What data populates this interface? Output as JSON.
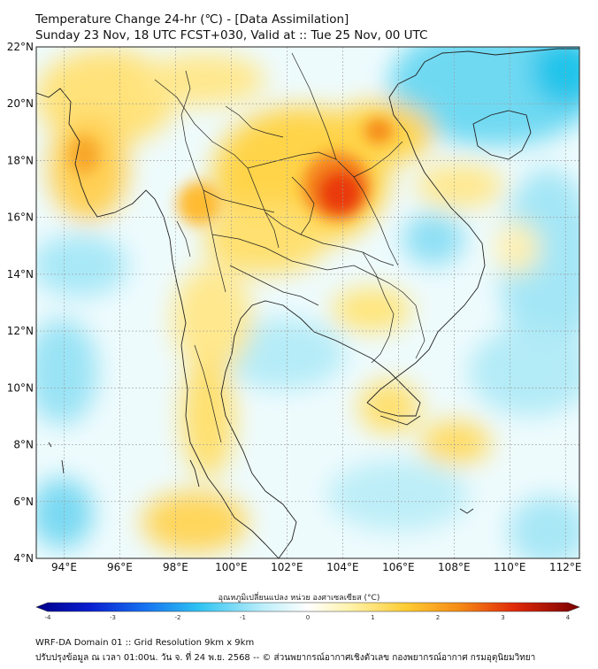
{
  "title": "Temperature Change 24-hr (℃) - [Data Assimilation]",
  "subtitle": "Sunday 23 Nov, 18 UTC FCST+030, Valid at :: Tue 25 Nov, 00 UTC",
  "map": {
    "lat_ticks": [
      "22°N",
      "20°N",
      "18°N",
      "16°N",
      "14°N",
      "12°N",
      "10°N",
      "8°N",
      "6°N",
      "4°N"
    ],
    "lon_ticks": [
      "94°E",
      "96°E",
      "98°E",
      "100°E",
      "102°E",
      "104°E",
      "106°E",
      "108°E",
      "110°E",
      "112°E"
    ],
    "lat_range": [
      4,
      22
    ],
    "lon_range": [
      93,
      112.5
    ],
    "grid": true
  },
  "colorbar": {
    "label": "อุณหภูมิเปลี่ยนแปลง หน่วย องศาเซลเซียส (°C)",
    "ticks": [
      "-4",
      "-3",
      "-2",
      "-1",
      "0",
      "1",
      "2",
      "3",
      "4"
    ],
    "range": [
      -4,
      4
    ]
  },
  "footer": {
    "line1": "WRF-DA Domain 01 :: Grid Resolution 9km x 9km",
    "line2": "ปรับปรุงข้อมูล ณ เวลา 01:00น. วัน จ. ที่ 24 พ.ย. 2568 -- © ส่วนพยากรณ์อากาศเชิงตัวเลข กองพยากรณ์อากาศ กรมอุตุนิยมวิทยา"
  }
}
